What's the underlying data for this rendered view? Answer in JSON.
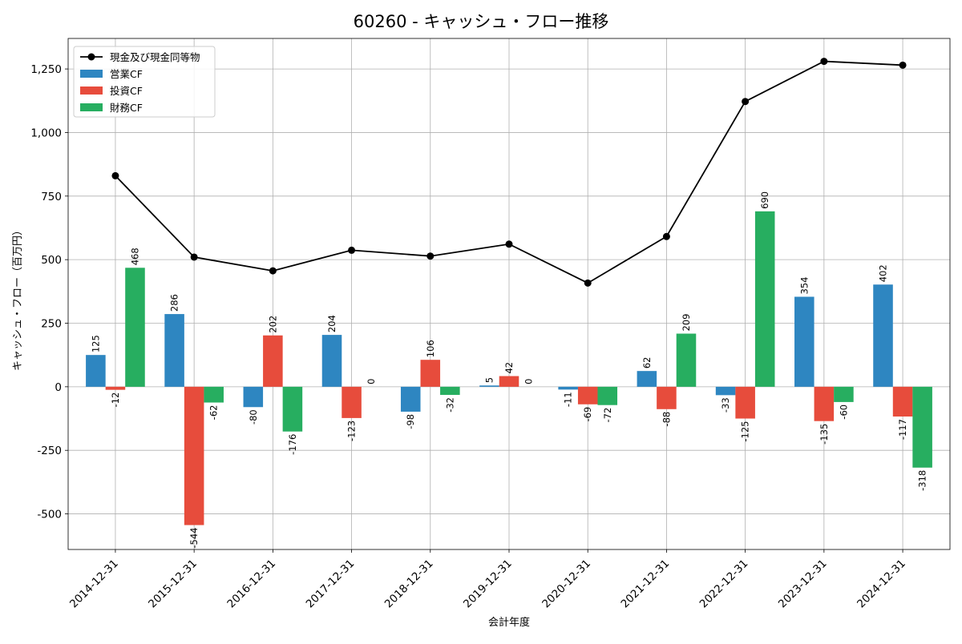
{
  "chart_data": {
    "type": "bar",
    "title": "60260 - キャッシュ・フロー推移",
    "xlabel": "会計年度",
    "ylabel": "キャッシュ・フロー（百万円）",
    "categories": [
      "2014-12-31",
      "2015-12-31",
      "2016-12-31",
      "2017-12-31",
      "2018-12-31",
      "2019-12-31",
      "2020-12-31",
      "2021-12-31",
      "2022-12-31",
      "2023-12-31",
      "2024-12-31"
    ],
    "series": [
      {
        "name": "営業CF",
        "type": "bar",
        "color": "#2e86c1",
        "values": [
          125,
          286,
          -80,
          204,
          -98,
          5,
          -11,
          62,
          -33,
          354,
          402
        ],
        "labels": [
          "125",
          "286",
          "-80",
          "204",
          "-98",
          "5",
          "-11",
          "62",
          "-33",
          "354",
          "402"
        ]
      },
      {
        "name": "投資CF",
        "type": "bar",
        "color": "#e74c3c",
        "values": [
          -12,
          -544,
          202,
          -123,
          106,
          42,
          -69,
          -88,
          -125,
          -135,
          -117
        ],
        "labels": [
          "-12",
          "-544",
          "202",
          "-123",
          "106",
          "42",
          "-69",
          "-88",
          "-125",
          "-135",
          "-117"
        ]
      },
      {
        "name": "財務CF",
        "type": "bar",
        "color": "#27ae60",
        "values": [
          468,
          -62,
          -176,
          0,
          -32,
          0,
          -72,
          209,
          690,
          -60,
          -318
        ],
        "labels": [
          "468",
          "-62",
          "-176",
          "0",
          "-32",
          "0",
          "-72",
          "209",
          "690",
          "-60",
          "-318"
        ]
      },
      {
        "name": "現金及び現金同等物",
        "type": "line",
        "color": "#000000",
        "values": [
          830,
          510,
          456,
          537,
          514,
          561,
          408,
          591,
          1122,
          1280,
          1265
        ]
      }
    ],
    "ylim": [
      -640,
      1370
    ],
    "yticks": [
      -500,
      -250,
      0,
      250,
      500,
      750,
      1000,
      1250
    ],
    "ytick_labels": [
      "-500",
      "-250",
      "0",
      "250",
      "500",
      "750",
      "1,000",
      "1,250"
    ],
    "grid": true,
    "legend_position": "top-left",
    "legend_order": [
      "現金及び現金同等物",
      "営業CF",
      "投資CF",
      "財務CF"
    ]
  }
}
